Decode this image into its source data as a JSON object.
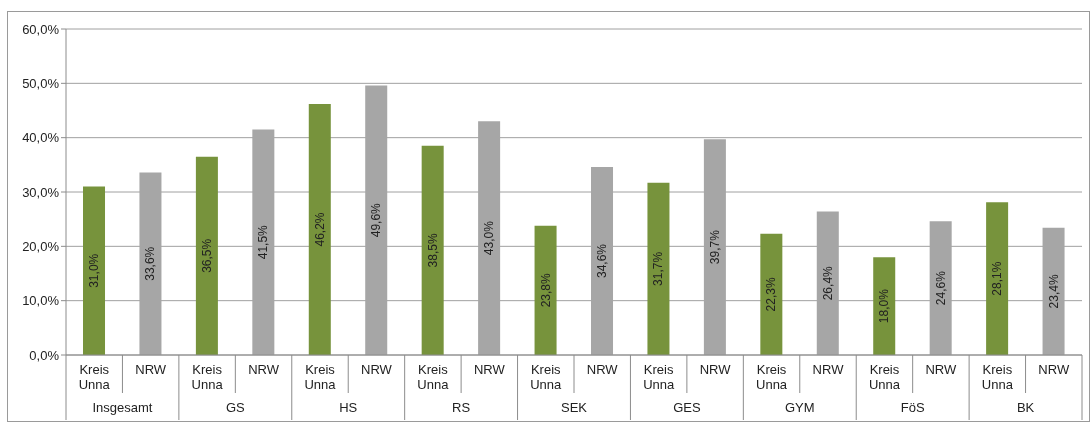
{
  "chart_data": {
    "type": "bar",
    "categories": [
      "Insgesamt",
      "GS",
      "HS",
      "RS",
      "SEK",
      "GES",
      "GYM",
      "FöS",
      "BK"
    ],
    "series": [
      {
        "name": "Kreis Unna",
        "color": "#77933c",
        "values": [
          31.0,
          36.5,
          46.2,
          38.5,
          23.8,
          31.7,
          22.3,
          18.0,
          28.1
        ],
        "value_labels": [
          "31,0%",
          "36,5%",
          "46,2%",
          "38,5%",
          "23,8%",
          "31,7%",
          "22,3%",
          "18,0%",
          "28,1%"
        ]
      },
      {
        "name": "NRW",
        "color": "#a6a6a6",
        "values": [
          33.6,
          41.5,
          49.6,
          43.0,
          34.6,
          39.7,
          26.4,
          24.6,
          23.4
        ],
        "value_labels": [
          "33,6%",
          "41,5%",
          "49,6%",
          "43,0%",
          "34,6%",
          "39,7%",
          "26,4%",
          "24,6%",
          "23,4%"
        ]
      }
    ],
    "ylim": [
      0,
      60
    ],
    "yticks": [
      {
        "value": 0,
        "label": "0,0%"
      },
      {
        "value": 10,
        "label": "10,0%"
      },
      {
        "value": 20,
        "label": "20,0%"
      },
      {
        "value": 30,
        "label": "30,0%"
      },
      {
        "value": 40,
        "label": "40,0%"
      },
      {
        "value": 50,
        "label": "50,0%"
      },
      {
        "value": 60,
        "label": "60,0%"
      }
    ],
    "grid": "y"
  }
}
